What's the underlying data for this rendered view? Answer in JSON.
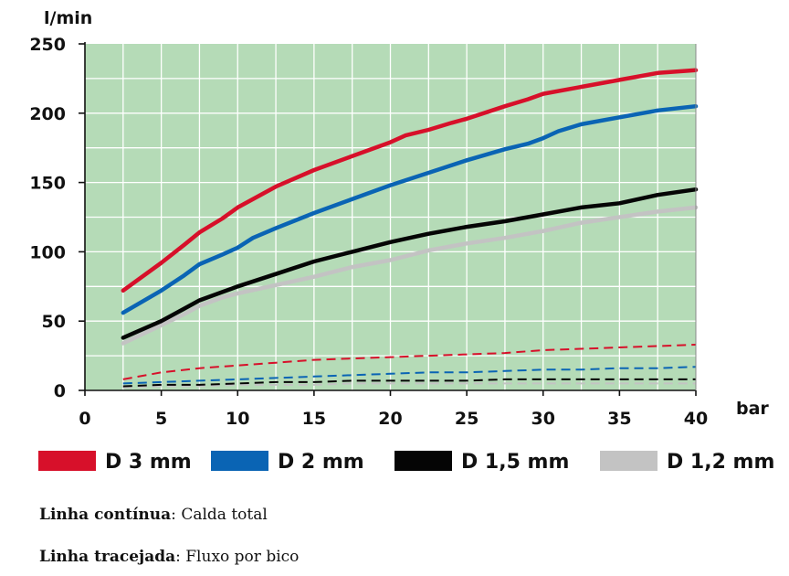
{
  "chart_data": {
    "type": "line",
    "y_unit_label": "l/min",
    "x_unit_label": "bar",
    "xlim": [
      0,
      40
    ],
    "ylim": [
      0,
      250
    ],
    "x_ticks": [
      0,
      5,
      10,
      15,
      20,
      25,
      30,
      35,
      40
    ],
    "y_ticks": [
      0,
      50,
      100,
      150,
      200,
      250
    ],
    "grid": true,
    "plot_background": "#b5dbb7",
    "grid_color": "#ffffff",
    "series": [
      {
        "name": "D 3 mm",
        "color": "#d7102a",
        "style": "solid",
        "x": [
          2.5,
          5,
          6.5,
          7.5,
          9,
          10,
          12.5,
          15,
          17.5,
          20,
          21,
          22.5,
          24,
          25,
          27.5,
          29,
          30,
          32.5,
          35,
          37.5,
          40
        ],
        "y": [
          72,
          92,
          105,
          114,
          124,
          132,
          147,
          159,
          169,
          179,
          184,
          188,
          193,
          196,
          205,
          210,
          214,
          219,
          224,
          229,
          231
        ]
      },
      {
        "name": "D 2 mm",
        "color": "#0a64b4",
        "style": "solid",
        "x": [
          2.5,
          5,
          6.5,
          7.5,
          9,
          10,
          11,
          12.5,
          15,
          17.5,
          20,
          22.5,
          25,
          27.5,
          29,
          30,
          31,
          32.5,
          35,
          37.5,
          40
        ],
        "y": [
          56,
          72,
          83,
          91,
          98,
          103,
          110,
          117,
          128,
          138,
          148,
          157,
          166,
          174,
          178,
          182,
          187,
          192,
          197,
          202,
          205
        ]
      },
      {
        "name": "D 1,5 mm",
        "color": "#050505",
        "style": "solid",
        "x": [
          2.5,
          5,
          6.5,
          7.5,
          9,
          10,
          12.5,
          15,
          17.5,
          20,
          22.5,
          25,
          27.5,
          30,
          32.5,
          35,
          37.5,
          40
        ],
        "y": [
          38,
          50,
          59,
          65,
          71,
          75,
          84,
          93,
          100,
          107,
          113,
          118,
          122,
          127,
          132,
          135,
          141,
          145
        ]
      },
      {
        "name": "D 1,2 mm",
        "color": "#c3c3c3",
        "style": "solid",
        "x": [
          2.5,
          5,
          6.5,
          7.5,
          9,
          10,
          12.5,
          15,
          17.5,
          20,
          22.5,
          25,
          27.5,
          30,
          32.5,
          35,
          37.5,
          40
        ],
        "y": [
          34,
          47,
          55,
          61,
          67,
          70,
          76,
          82,
          89,
          94,
          101,
          106,
          110,
          115,
          121,
          125,
          129,
          132
        ]
      },
      {
        "name": "D 3 mm",
        "color": "#d7102a",
        "style": "dashed",
        "x": [
          2.5,
          5,
          7.5,
          10,
          12.5,
          15,
          17.5,
          20,
          22.5,
          25,
          27.5,
          30,
          32.5,
          35,
          37.5,
          40
        ],
        "y": [
          8,
          13,
          16,
          18,
          20,
          22,
          23,
          24,
          25,
          26,
          27,
          29,
          30,
          31,
          32,
          33
        ]
      },
      {
        "name": "D 2 mm",
        "color": "#0a64b4",
        "style": "dashed",
        "x": [
          2.5,
          5,
          7.5,
          10,
          12.5,
          15,
          17.5,
          20,
          22.5,
          25,
          27.5,
          30,
          32.5,
          35,
          37.5,
          40
        ],
        "y": [
          5,
          6,
          7,
          8,
          9,
          10,
          11,
          12,
          13,
          13,
          14,
          15,
          15,
          16,
          16,
          17
        ]
      },
      {
        "name": "D 1,5 mm",
        "color": "#050505",
        "style": "dashed",
        "x": [
          2.5,
          5,
          7.5,
          10,
          12.5,
          15,
          17.5,
          20,
          22.5,
          25,
          27.5,
          30,
          32.5,
          35,
          37.5,
          40
        ],
        "y": [
          3,
          4,
          4,
          5,
          6,
          6,
          7,
          7,
          7,
          7,
          8,
          8,
          8,
          8,
          8,
          8
        ]
      },
      {
        "name": "D 1,2 mm",
        "color": "#c3c3c3",
        "style": "dashed",
        "x": [
          2.5,
          5,
          7.5,
          10,
          12.5,
          15,
          17.5,
          20,
          22.5,
          25,
          27.5,
          30,
          32.5,
          35,
          37.5,
          40
        ],
        "y": [
          2,
          3,
          3,
          4,
          4,
          4,
          5,
          5,
          5,
          5,
          5,
          5,
          5,
          5,
          5,
          5
        ]
      }
    ],
    "legend": {
      "placement": "bottom",
      "entries": [
        {
          "label": "D 3 mm",
          "color": "#d7102a"
        },
        {
          "label": "D 2 mm",
          "color": "#0a64b4"
        },
        {
          "label": "D 1,5 mm",
          "color": "#050505"
        },
        {
          "label": "D 1,2 mm",
          "color": "#c3c3c3"
        }
      ]
    }
  },
  "notes": {
    "solid_term": "Linha contínua",
    "solid_text": "Calda total",
    "dashed_term": "Linha tracejada",
    "dashed_text": "Fluxo por bico"
  }
}
